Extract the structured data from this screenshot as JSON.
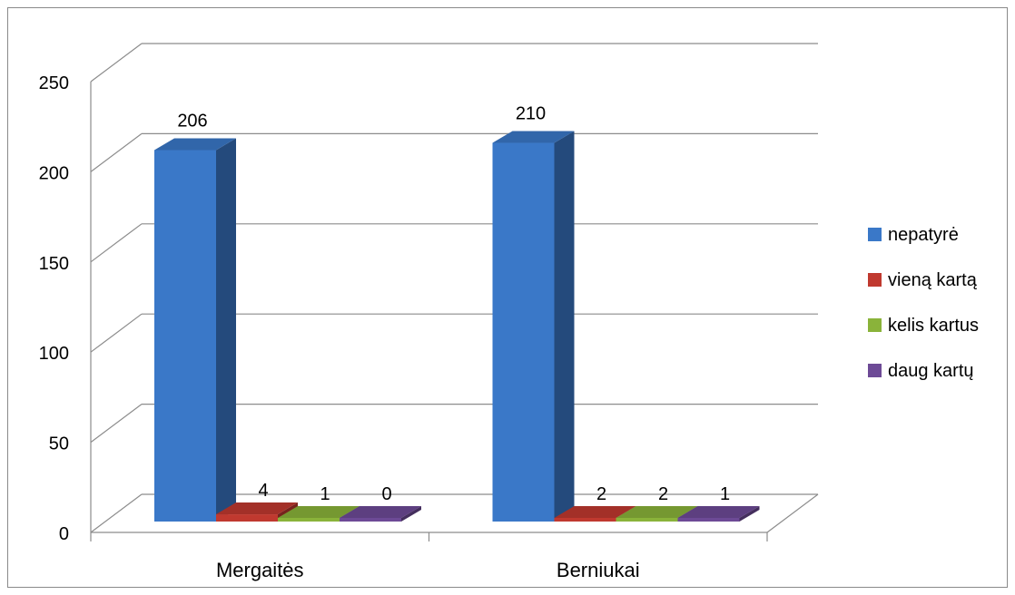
{
  "chart_data": {
    "type": "bar",
    "view": "3d-clustered-column",
    "categories": [
      "Mergaitės",
      "Berniukai"
    ],
    "series": [
      {
        "name": "nepatyrė",
        "values": [
          206,
          210
        ],
        "color": "#3a78c8"
      },
      {
        "name": "vieną kartą",
        "values": [
          4,
          2
        ],
        "color": "#c0392f"
      },
      {
        "name": "kelis kartus",
        "values": [
          1,
          2
        ],
        "color": "#8ab33a"
      },
      {
        "name": "daug kartų",
        "values": [
          0,
          1
        ],
        "color": "#6d4a96"
      }
    ],
    "ylim": [
      0,
      250
    ],
    "yticks": [
      0,
      50,
      100,
      150,
      200,
      250
    ],
    "grid": true,
    "data_labels": true,
    "legend_position": "right"
  }
}
